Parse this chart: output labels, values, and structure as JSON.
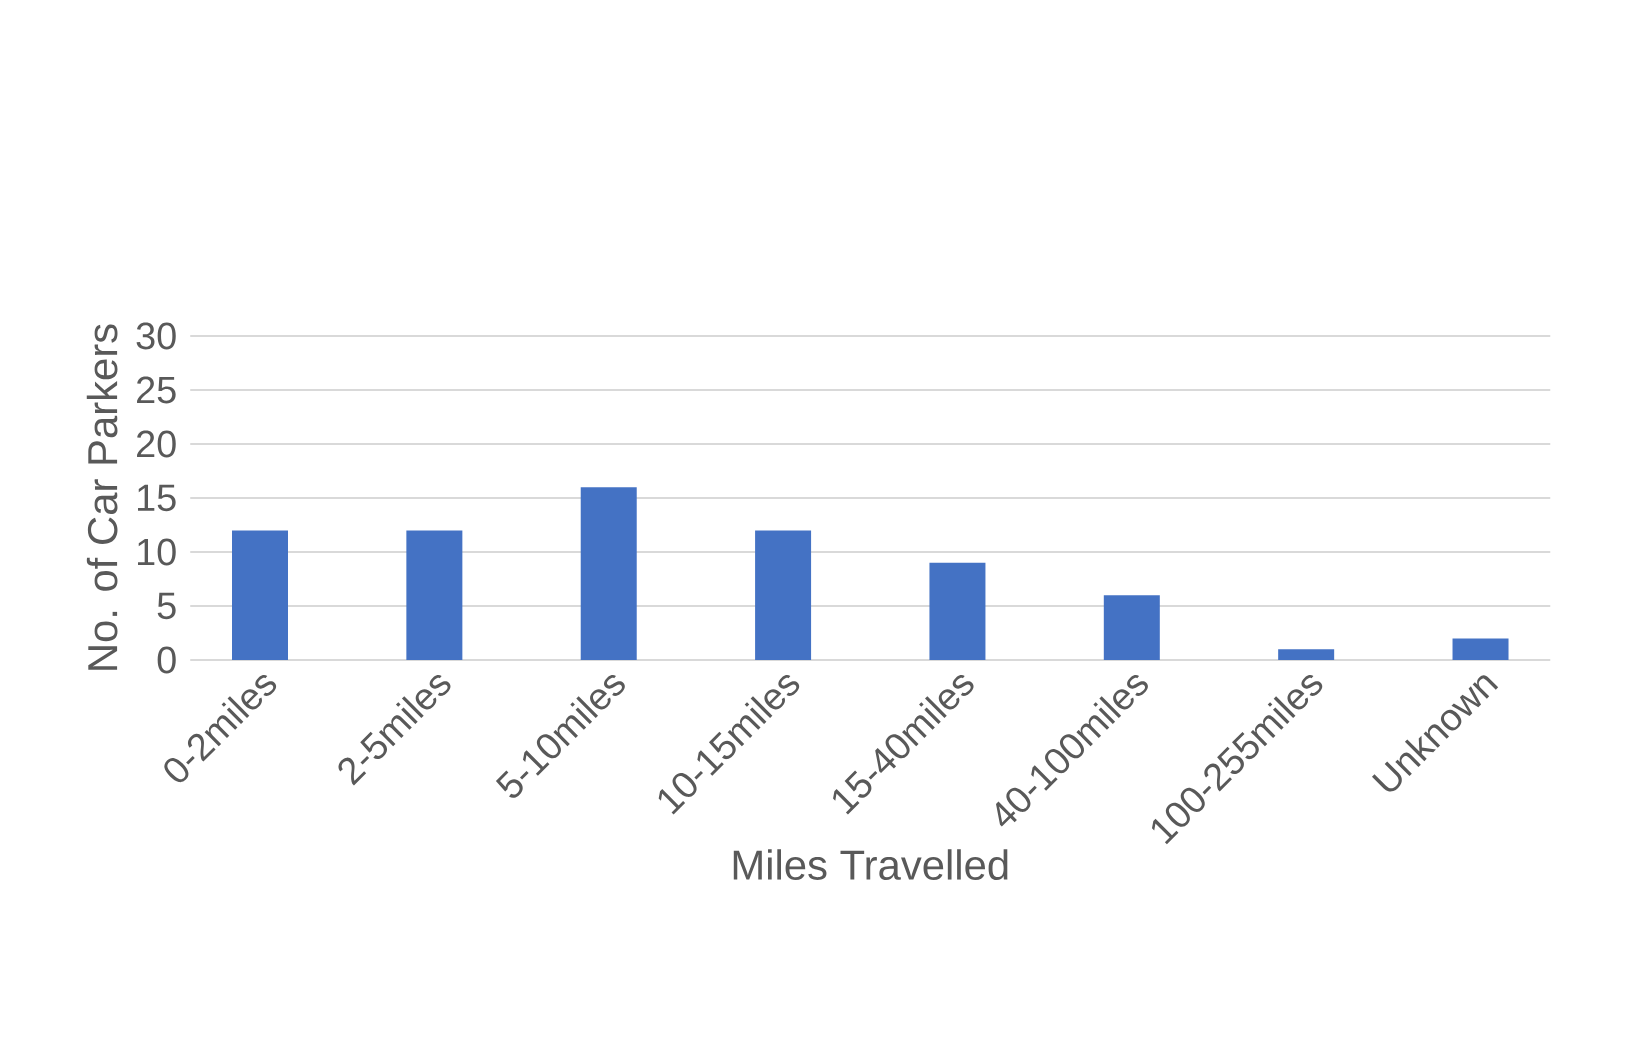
{
  "chart_data": {
    "type": "bar",
    "xlabel": "Miles Travelled",
    "ylabel": "No. of Car Parkers",
    "categories": [
      "0-2miles",
      "2-5miles",
      "5-10miles",
      "10-15miles",
      "15-40miles",
      "40-100miles",
      "100-255miles",
      "Unknown"
    ],
    "values": [
      12,
      12,
      16,
      12,
      9,
      6,
      1,
      2
    ],
    "color": "#4472c4",
    "ylim": [
      0,
      30
    ],
    "yticks": [
      0,
      5,
      10,
      15,
      20,
      25,
      30
    ],
    "grid": "y"
  }
}
